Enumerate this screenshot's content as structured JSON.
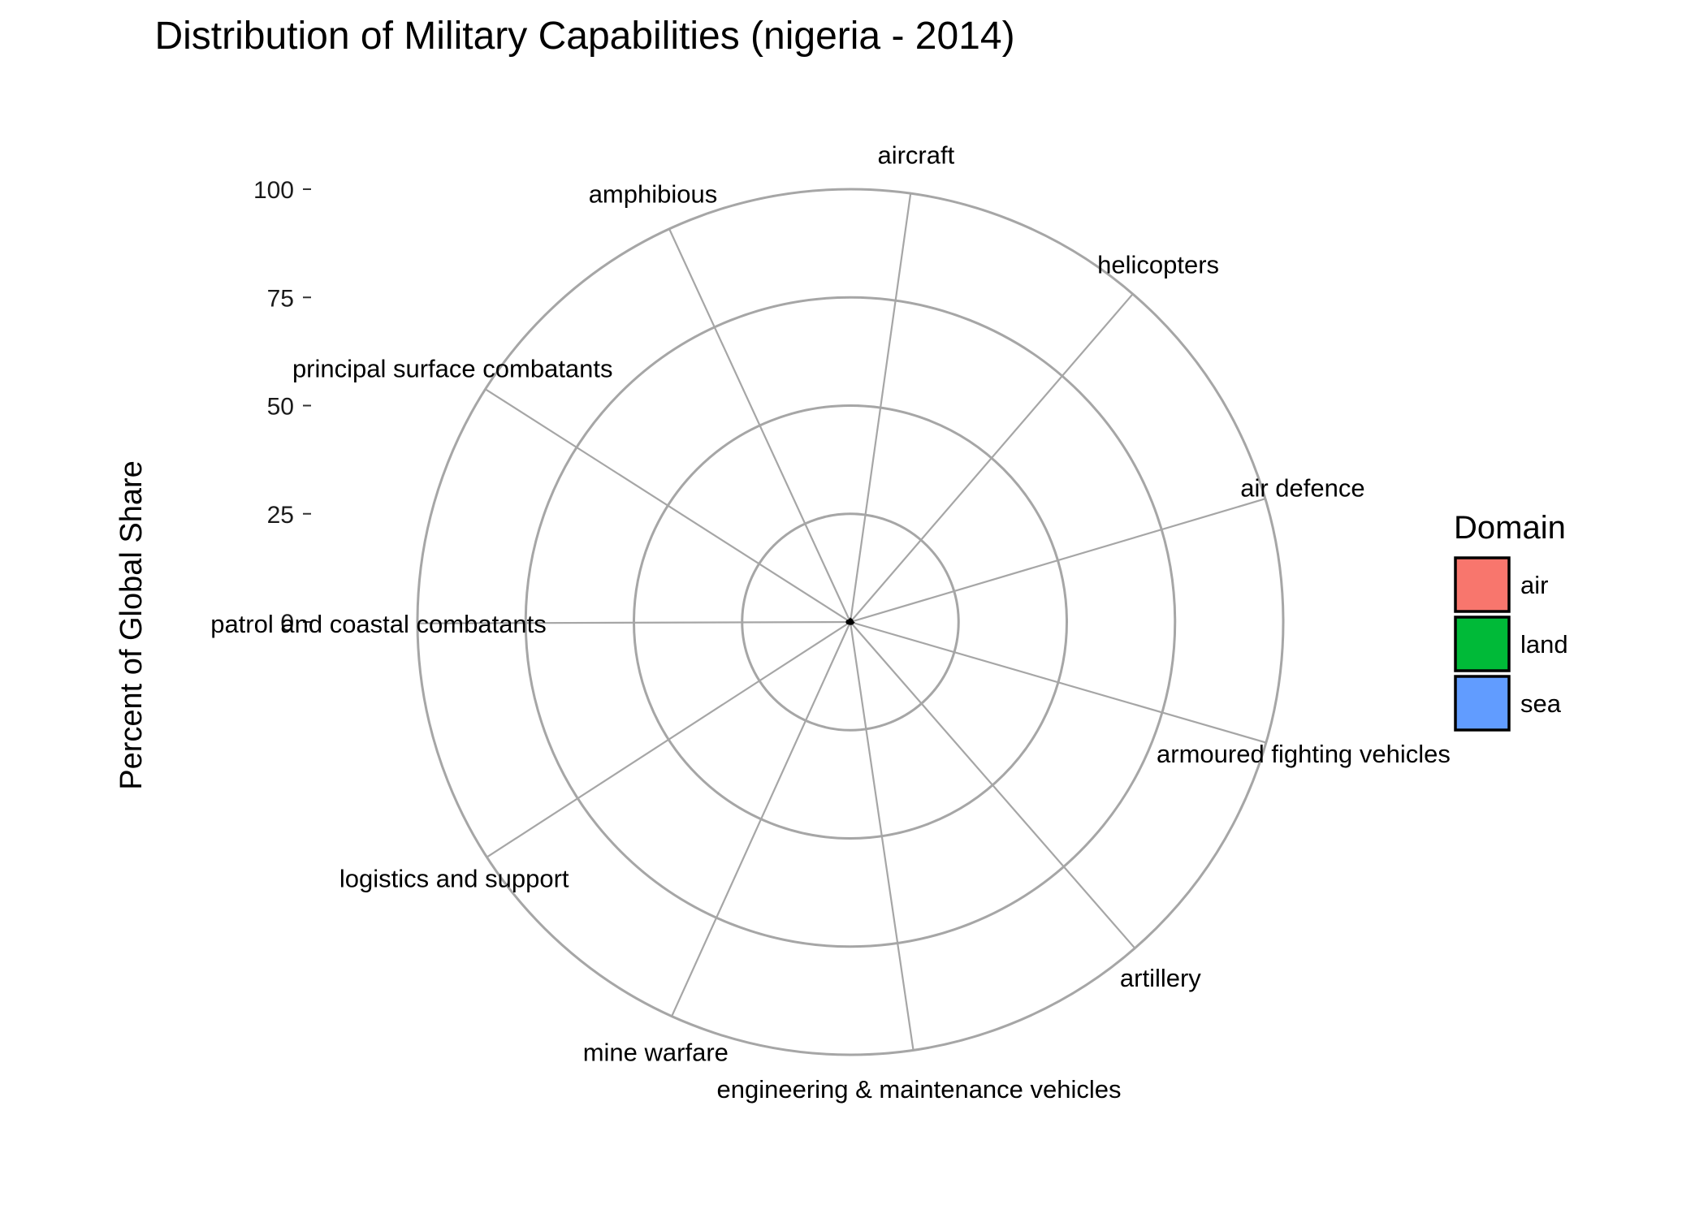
{
  "chart_data": {
    "type": "radar",
    "title": "Distribution of Military Capabilities (nigeria - 2014)",
    "ylabel": "Percent of Global Share",
    "ylim": [
      0,
      100
    ],
    "yticks": [
      "0",
      "25",
      "50",
      "75",
      "100"
    ],
    "grid": true,
    "categories": [
      "aircraft",
      "helicopters",
      "air defence",
      "armoured fighting vehicles",
      "artillery",
      "engineering & maintenance vehicles",
      "mine warfare",
      "logistics and support",
      "patrol and coastal combatants",
      "principal surface combatants",
      "amphibious"
    ],
    "domains": [
      "air",
      "air",
      "land",
      "land",
      "land",
      "land",
      "sea",
      "sea",
      "sea",
      "sea",
      "sea"
    ],
    "values": [
      0.3,
      0.2,
      0.1,
      0.3,
      0.2,
      0.1,
      0.1,
      0.2,
      0.5,
      0.1,
      0.1
    ],
    "legend": {
      "title": "Domain",
      "placement": "right",
      "entries": [
        {
          "label": "air",
          "color": "#F8766D"
        },
        {
          "label": "land",
          "color": "#00BA38"
        },
        {
          "label": "sea",
          "color": "#619CFF"
        }
      ]
    }
  }
}
